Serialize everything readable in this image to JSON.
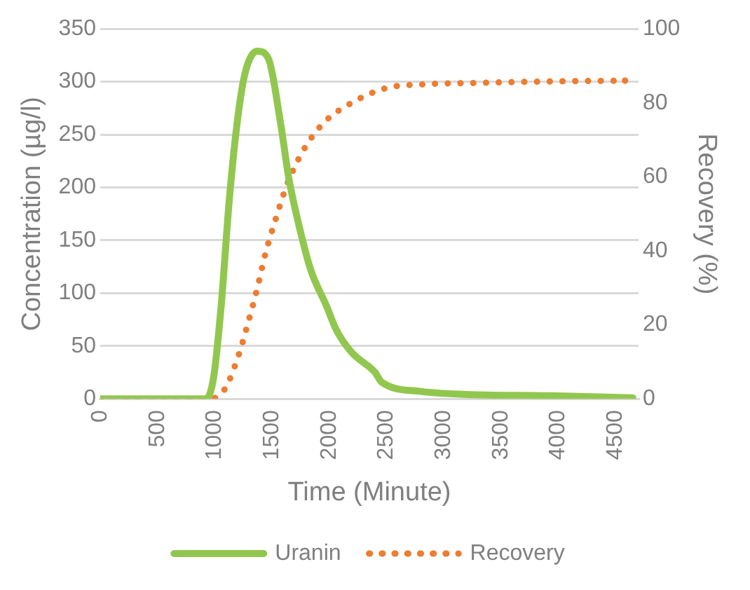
{
  "chart_data": {
    "type": "line",
    "xlabel": "Time (Minute)",
    "ylabel": "Concentration (µg/l)",
    "y2label": "Recovery (%)",
    "xlim": [
      0,
      4700
    ],
    "xticks": [
      0,
      500,
      1000,
      1500,
      2000,
      2500,
      3000,
      3500,
      4000,
      4500
    ],
    "ylim": [
      0,
      350
    ],
    "yticks": [
      0,
      50,
      100,
      150,
      200,
      250,
      300,
      350
    ],
    "y2lim": [
      0,
      100
    ],
    "y2ticks": [
      0,
      20,
      40,
      60,
      80,
      100
    ],
    "grid": "y",
    "legend": "bottom",
    "marker": "none",
    "series": [
      {
        "name": "Uranin",
        "color": "#92c74f",
        "line_style": "solid",
        "x": [
          0,
          920,
          988,
          1056,
          1125,
          1193,
          1262,
          1372,
          1468,
          1577,
          1646,
          1742,
          1838,
          1975,
          2058,
          2195,
          2400,
          2455,
          2798,
          3251,
          3937,
          4650
        ],
        "values": [
          0,
          0,
          19,
          88,
          186,
          259,
          307,
          329,
          322,
          259,
          209,
          161,
          122,
          88,
          66,
          44,
          25,
          16,
          7,
          4,
          3,
          1
        ]
      },
      {
        "name": "Recovery",
        "color": "#ed7d31",
        "line_style": "dotted",
        "axis": "y2",
        "x": [
          0,
          946,
          1084,
          1207,
          1290,
          1372,
          1440,
          1536,
          1632,
          1770,
          1948,
          2195,
          2497,
          2812,
          3292,
          3937,
          4582
        ],
        "values": [
          0,
          0,
          2.5,
          11.7,
          20.5,
          30,
          39,
          49,
          58,
          67,
          74.5,
          80,
          84,
          85,
          85.4,
          85.8,
          86
        ]
      }
    ]
  }
}
